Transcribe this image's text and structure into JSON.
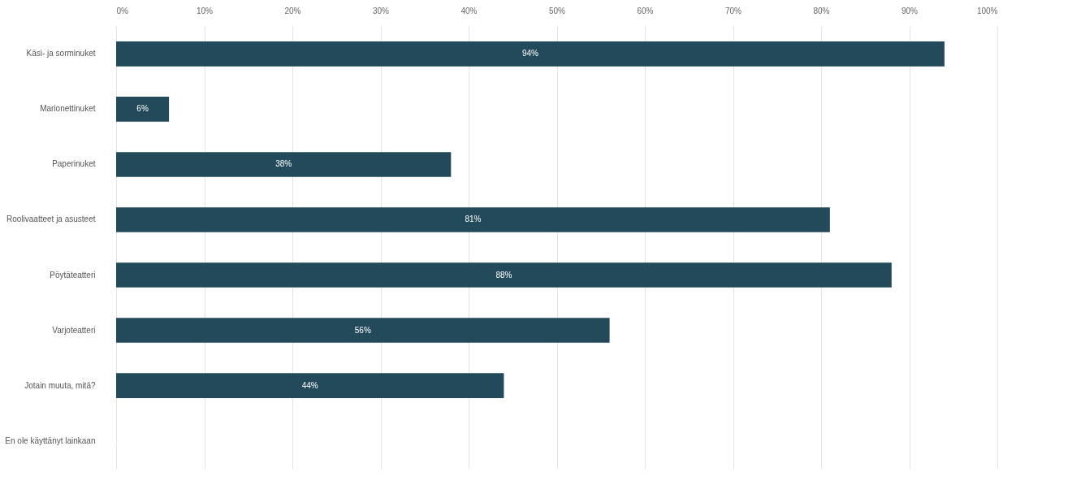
{
  "chart_data": {
    "type": "bar",
    "orientation": "horizontal",
    "categories": [
      "Käsi- ja sorminuket",
      "Marionettinuket",
      "Paperinuket",
      "Roolivaatteet ja asusteet",
      "Pöytäteatteri",
      "Varjoteatteri",
      "Jotain muuta, mitä?",
      "En ole käyttänyt lainkaan"
    ],
    "values": [
      94,
      6,
      38,
      81,
      88,
      56,
      44,
      0
    ],
    "value_labels": [
      "94%",
      "6%",
      "38%",
      "81%",
      "88%",
      "56%",
      "44%",
      null
    ],
    "color": "#234a5a",
    "xlim": [
      0,
      100
    ],
    "xticks": [
      {
        "value": 0,
        "label": "0%"
      },
      {
        "value": 10,
        "label": "10%"
      },
      {
        "value": 20,
        "label": "20%"
      },
      {
        "value": 30,
        "label": "30%"
      },
      {
        "value": 40,
        "label": "40%"
      },
      {
        "value": 50,
        "label": "50%"
      },
      {
        "value": 60,
        "label": "60%"
      },
      {
        "value": 70,
        "label": "70%"
      },
      {
        "value": 80,
        "label": "80%"
      },
      {
        "value": 90,
        "label": "90%"
      },
      {
        "value": 100,
        "label": "100%"
      }
    ],
    "grid": "x"
  }
}
